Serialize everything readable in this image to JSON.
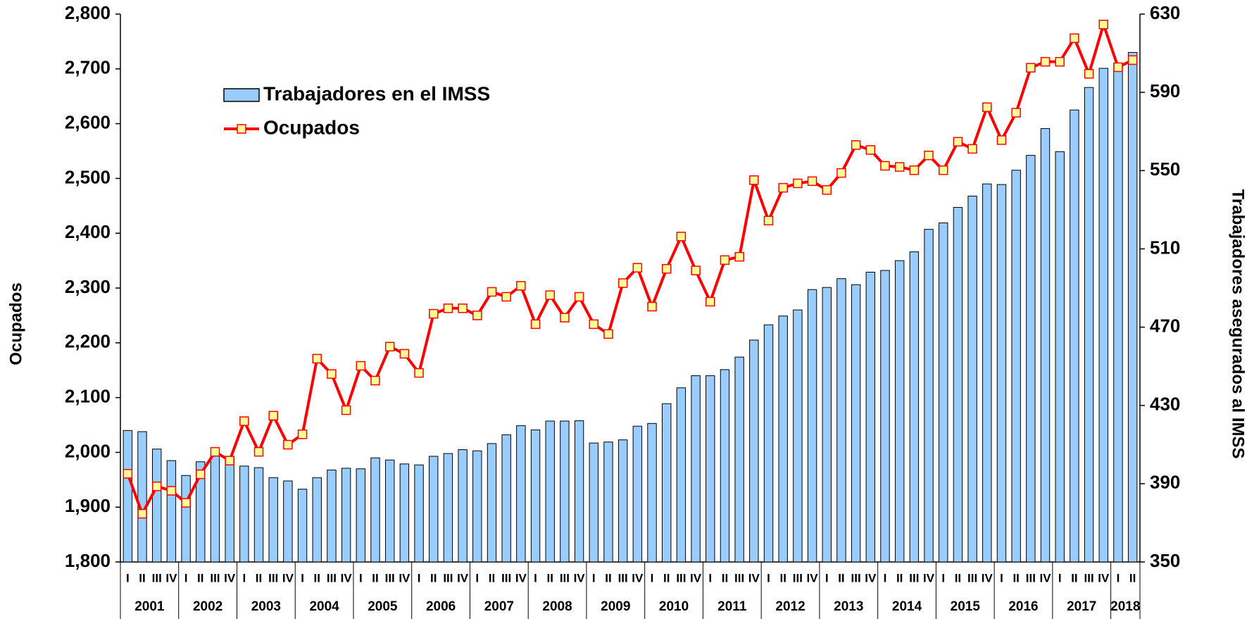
{
  "chart_data": {
    "type": "bar-line",
    "y_label": "Ocupados",
    "y2_label": "Trabajadores asegurados al IMSS",
    "categories": [
      "I",
      "II",
      "III",
      "IV",
      "I",
      "II",
      "III",
      "IV",
      "I",
      "II",
      "III",
      "IV",
      "I",
      "II",
      "III",
      "IV",
      "I",
      "II",
      "III",
      "IV",
      "I",
      "II",
      "III",
      "IV",
      "I",
      "II",
      "III",
      "IV",
      "I",
      "II",
      "III",
      "IV",
      "I",
      "II",
      "III",
      "IV",
      "I",
      "II",
      "III",
      "IV",
      "I",
      "II",
      "III",
      "IV",
      "I",
      "II",
      "III",
      "IV",
      "I",
      "II",
      "III",
      "IV",
      "I",
      "II",
      "III",
      "IV",
      "I",
      "II",
      "III",
      "IV",
      "I",
      "II",
      "III",
      "IV",
      "I",
      "II",
      "III",
      "IV",
      "I",
      "II"
    ],
    "years": [
      "2001",
      "2002",
      "2003",
      "2004",
      "2005",
      "2006",
      "2007",
      "2008",
      "2009",
      "2010",
      "2011",
      "2012",
      "2013",
      "2014",
      "2015",
      "2016",
      "2017",
      "2018"
    ],
    "series": [
      {
        "name": "Trabajadores en el IMSS",
        "type": "bar",
        "axis": "y2",
        "color": "#99ccff",
        "values": [
          417.2,
          416.6,
          407.7,
          401.8,
          394.2,
          401.2,
          405.2,
          403.2,
          399,
          398.2,
          393.1,
          391.4,
          387.2,
          393.1,
          397,
          397.9,
          397.6,
          403.2,
          402.1,
          400.1,
          399.6,
          404,
          405.4,
          407.4,
          406.8,
          410.5,
          415,
          419.7,
          417.5,
          422,
          422,
          422.2,
          410.8,
          411.3,
          412.4,
          419.4,
          420.8,
          430.9,
          439,
          445.2,
          445.2,
          448.3,
          454.7,
          463.4,
          471.2,
          475.7,
          478.8,
          489.2,
          490.3,
          494.8,
          491.7,
          498.1,
          499,
          504,
          508.5,
          520,
          523.3,
          531.2,
          537,
          543.2,
          542.9,
          550.2,
          557.8,
          571.5,
          559.7,
          581,
          592.5,
          602.3,
          604.8,
          610.4
        ]
      },
      {
        "name": "Ocupados",
        "type": "line",
        "axis": "y",
        "color": "#ff0000",
        "marker_color": "#ffff99",
        "values": [
          1961,
          1888,
          1938,
          1930,
          1908,
          1960,
          2001,
          1985,
          2057,
          2001,
          2067,
          2014,
          2033,
          2171,
          2143,
          2077,
          2158,
          2131,
          2193,
          2180,
          2145,
          2253,
          2263,
          2263,
          2250,
          2293,
          2284,
          2304,
          2234,
          2287,
          2246,
          2284,
          2234,
          2216,
          2309,
          2337,
          2266,
          2335,
          2394,
          2332,
          2275,
          2351,
          2357,
          2497,
          2423,
          2483,
          2491,
          2495,
          2479,
          2510,
          2561,
          2552,
          2523,
          2521,
          2515,
          2542,
          2515,
          2567,
          2554,
          2630,
          2570,
          2620,
          2702,
          2713,
          2713,
          2756,
          2691,
          2781,
          2703,
          2716
        ]
      }
    ],
    "ylim": [
      1800,
      2800
    ],
    "yticks": [
      {
        "value": 1800,
        "label": "1,800"
      },
      {
        "value": 1900,
        "label": "1,900"
      },
      {
        "value": 2000,
        "label": "2,000"
      },
      {
        "value": 2100,
        "label": "2,100"
      },
      {
        "value": 2200,
        "label": "2,200"
      },
      {
        "value": 2300,
        "label": "2,300"
      },
      {
        "value": 2400,
        "label": "2,400"
      },
      {
        "value": 2500,
        "label": "2,500"
      },
      {
        "value": 2600,
        "label": "2,600"
      },
      {
        "value": 2700,
        "label": "2,700"
      },
      {
        "value": 2800,
        "label": "2,800"
      }
    ],
    "y2lim": [
      350,
      630
    ],
    "y2ticks": [
      350,
      390,
      430,
      470,
      510,
      550,
      590,
      630
    ],
    "grid": false
  }
}
